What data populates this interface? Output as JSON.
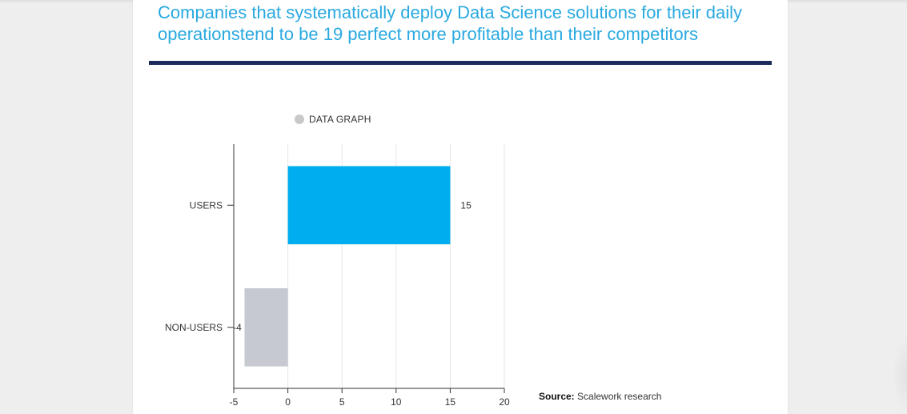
{
  "headline": "Companies that systematically deploy Data Science solutions for their daily operationstend to be 19 perfect more profitable than their competitors",
  "colors": {
    "headline": "#29a9e0",
    "rule": "#1d2b5a",
    "legend_dot": "#c9c9c9"
  },
  "legend": {
    "label": "DATA GRAPH"
  },
  "source": {
    "key": "Source:",
    "value": "Scalework research"
  },
  "chart_data": {
    "type": "bar",
    "orientation": "horizontal",
    "categories": [
      "USERS",
      "NON-USERS"
    ],
    "series": [
      {
        "name": "DATA GRAPH",
        "values": [
          15,
          -4
        ],
        "colors": [
          "#00aeef",
          "#c7c9d1"
        ]
      }
    ],
    "data_labels": [
      "15",
      "-4"
    ],
    "xlim": [
      -5,
      20
    ],
    "xticks": [
      -5,
      0,
      5,
      10,
      15,
      20
    ],
    "grid": true,
    "legend_position": "top"
  }
}
